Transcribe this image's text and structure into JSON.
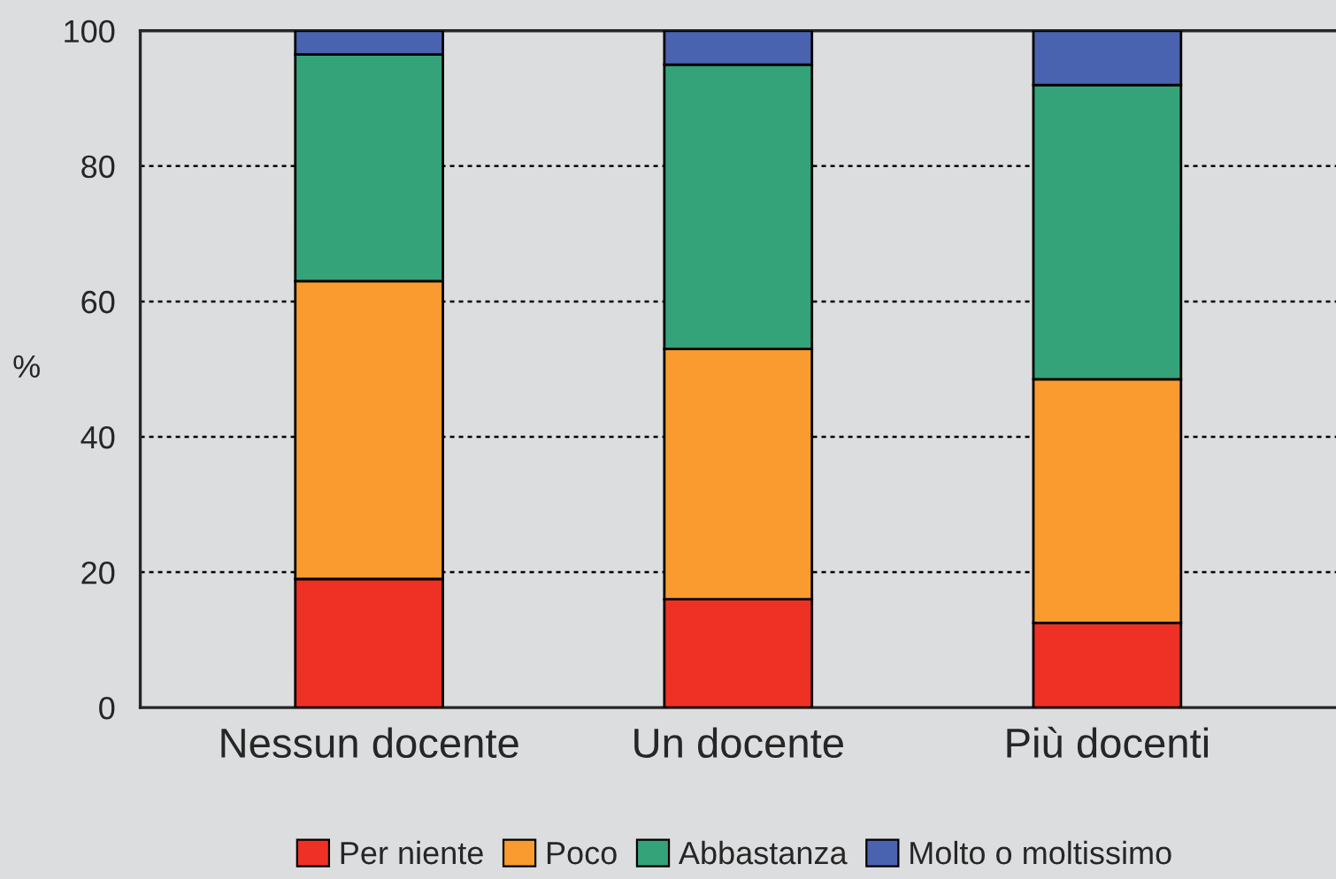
{
  "chart_data": {
    "type": "bar",
    "stacked": true,
    "ylabel": "%",
    "categories": [
      "Nessun docente",
      "Un docente",
      "Più docenti"
    ],
    "series": [
      {
        "name": "Per niente",
        "color": "#ee3124",
        "values": [
          19,
          16,
          12.5
        ]
      },
      {
        "name": "Poco",
        "color": "#f99b2f",
        "values": [
          44,
          37,
          36
        ]
      },
      {
        "name": "Abbastanza",
        "color": "#35a37a",
        "values": [
          33.5,
          42,
          43.5
        ]
      },
      {
        "name": "Molto o moltissimo",
        "color": "#4a63b0",
        "values": [
          3.5,
          5,
          8
        ]
      }
    ],
    "ylim": [
      0,
      100
    ],
    "yticks": [
      0,
      20,
      40,
      60,
      80,
      100
    ],
    "grid": "y",
    "legend": "bottom"
  }
}
